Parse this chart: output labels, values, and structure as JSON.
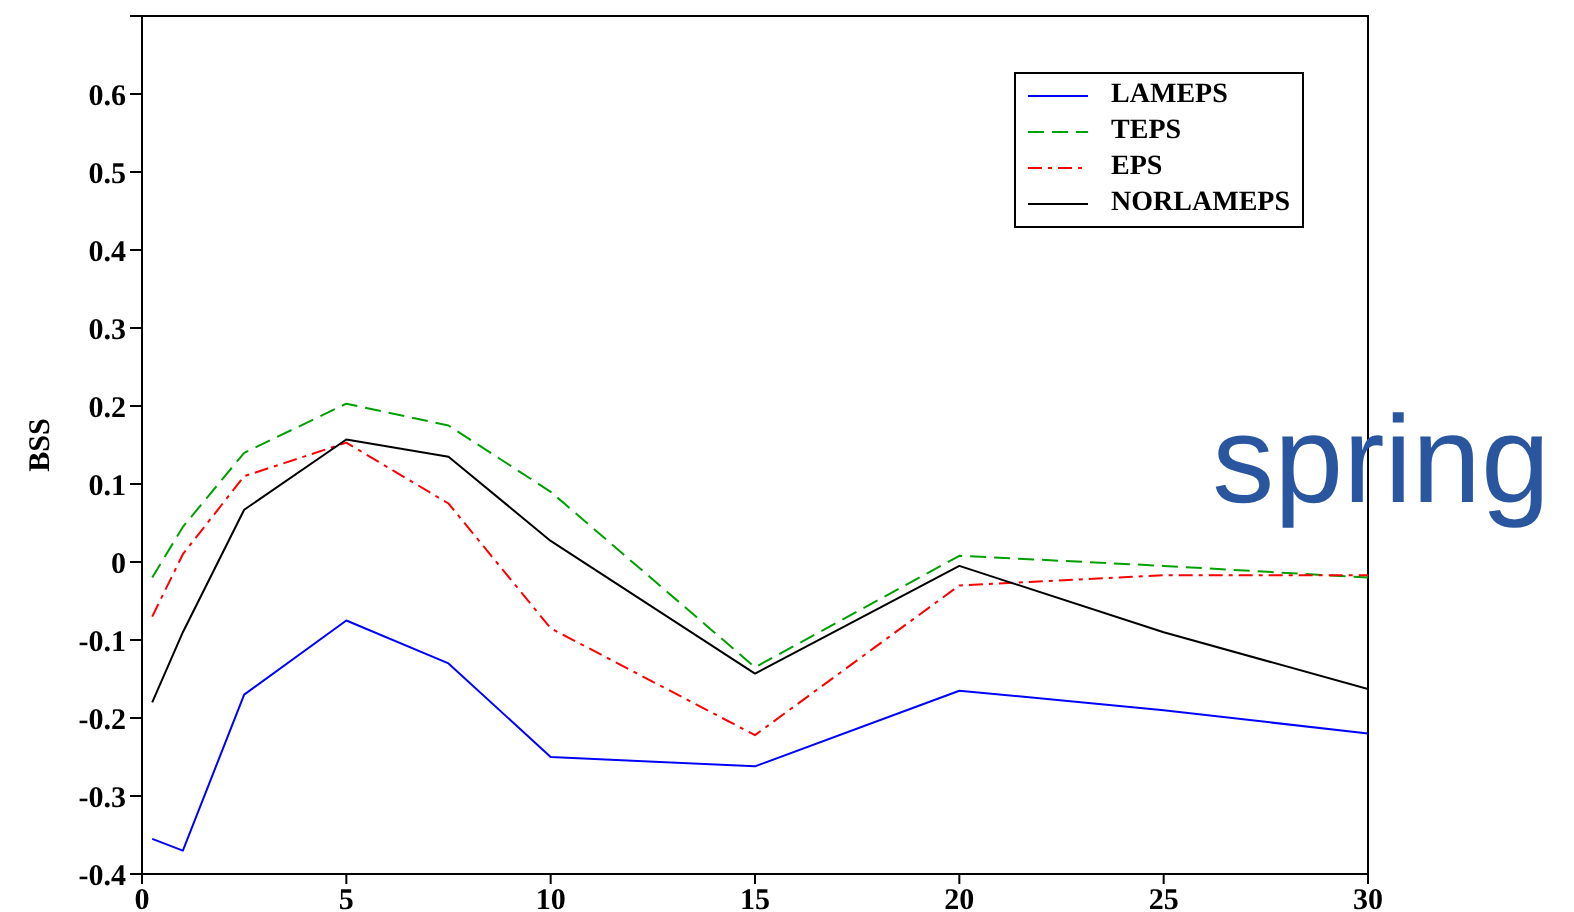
{
  "chart_data": {
    "type": "line",
    "ylabel": "BSS",
    "annotations": [
      "spring"
    ],
    "x": [
      0.25,
      1,
      2.5,
      5,
      7.5,
      10,
      15,
      20,
      25,
      30
    ],
    "series": [
      {
        "name": "LAMEPS",
        "color": "#0000ff",
        "line_style": "solid",
        "values": [
          -0.355,
          -0.37,
          -0.17,
          -0.075,
          -0.13,
          -0.25,
          -0.262,
          -0.165,
          -0.19,
          -0.22
        ]
      },
      {
        "name": "TEPS",
        "color": "#00a000",
        "line_style": "dashed",
        "values": [
          -0.02,
          0.045,
          0.14,
          0.203,
          0.175,
          0.09,
          -0.135,
          0.008,
          -0.005,
          -0.02
        ]
      },
      {
        "name": "EPS",
        "color": "#ff0000",
        "line_style": "dashdot",
        "values": [
          -0.07,
          0.01,
          0.11,
          0.153,
          0.075,
          -0.085,
          -0.222,
          -0.03,
          -0.017,
          -0.017
        ]
      },
      {
        "name": "NORLAMEPS",
        "color": "#000000",
        "line_style": "solid",
        "values": [
          -0.18,
          -0.09,
          0.067,
          0.157,
          0.135,
          0.027,
          -0.143,
          -0.005,
          -0.09,
          -0.163
        ]
      }
    ],
    "xlim": [
      0,
      30
    ],
    "xticks": [
      0,
      5,
      10,
      15,
      20,
      25,
      30
    ],
    "ylim": [
      -0.4,
      0.7
    ],
    "yticks": [
      -0.4,
      -0.3,
      -0.2,
      -0.1,
      0,
      0.1,
      0.2,
      0.3,
      0.4,
      0.5,
      0.6,
      {
        "value": 0.7,
        "label": null
      }
    ],
    "grid": false,
    "legend": "top right",
    "marker": "none"
  }
}
